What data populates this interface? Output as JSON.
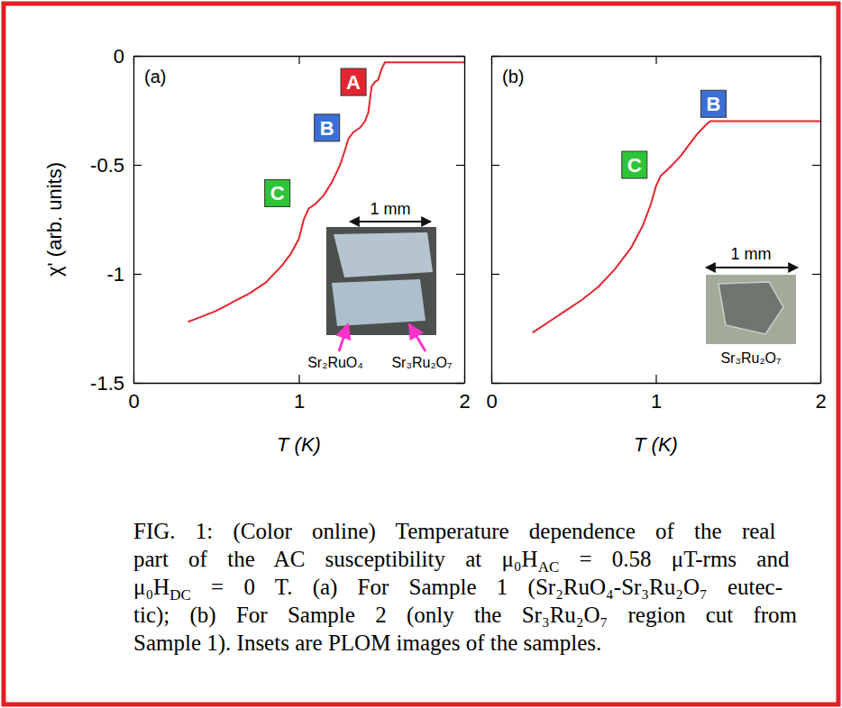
{
  "chart_data": [
    {
      "type": "line",
      "panel_label": "(a)",
      "x_label": "T (K)",
      "y_label": "χ' (arb. units)",
      "xlim": [
        0,
        2
      ],
      "ylim": [
        -1.5,
        0
      ],
      "xticks": [
        0,
        1,
        2
      ],
      "yticks": [
        0,
        -0.5,
        -1,
        -1.5
      ],
      "x": [
        0.33,
        0.4,
        0.5,
        0.6,
        0.7,
        0.8,
        0.9,
        0.95,
        1.0,
        1.03,
        1.06,
        1.1,
        1.15,
        1.2,
        1.25,
        1.28,
        1.3,
        1.33,
        1.37,
        1.4,
        1.42,
        1.43,
        1.44,
        1.46,
        1.48,
        1.5,
        1.52,
        1.55,
        1.7,
        2.0
      ],
      "series": [
        {
          "color": "#e3262e",
          "line_style": "solid",
          "values": [
            -1.22,
            -1.2,
            -1.17,
            -1.13,
            -1.09,
            -1.04,
            -0.96,
            -0.91,
            -0.84,
            -0.75,
            -0.7,
            -0.68,
            -0.64,
            -0.58,
            -0.5,
            -0.43,
            -0.38,
            -0.35,
            -0.33,
            -0.3,
            -0.26,
            -0.2,
            -0.14,
            -0.12,
            -0.11,
            -0.06,
            -0.03,
            -0.03,
            -0.03,
            -0.03
          ]
        }
      ],
      "annotations": [
        {
          "text": "A",
          "x": 1.33,
          "y": -0.12,
          "color": "#e3262e"
        },
        {
          "text": "B",
          "x": 1.17,
          "y": -0.33,
          "color": "#3b6fd6"
        },
        {
          "text": "C",
          "x": 0.87,
          "y": -0.63,
          "color": "#2ec43a"
        }
      ],
      "inset": {
        "scale_label": "1 mm",
        "labels": [
          "Sr₂RuO₄",
          "Sr₃Ru₂O₇"
        ]
      }
    },
    {
      "type": "line",
      "panel_label": "(b)",
      "x_label": "T (K)",
      "tick_labels": "x",
      "xlim": [
        0,
        2
      ],
      "ylim": [
        -1.5,
        0
      ],
      "xticks": [
        0,
        1,
        2
      ],
      "yticks": [
        0,
        -0.5,
        -1,
        -1.5
      ],
      "x": [
        0.25,
        0.35,
        0.45,
        0.55,
        0.65,
        0.75,
        0.85,
        0.92,
        0.97,
        1.0,
        1.03,
        1.06,
        1.1,
        1.15,
        1.2,
        1.25,
        1.3,
        1.33,
        1.36,
        1.5,
        1.7,
        2.0
      ],
      "series": [
        {
          "color": "#e3262e",
          "line_style": "solid",
          "values": [
            -1.27,
            -1.22,
            -1.17,
            -1.12,
            -1.06,
            -0.98,
            -0.88,
            -0.78,
            -0.68,
            -0.6,
            -0.55,
            -0.53,
            -0.5,
            -0.46,
            -0.41,
            -0.36,
            -0.32,
            -0.3,
            -0.3,
            -0.3,
            -0.3,
            -0.3
          ]
        }
      ],
      "annotations": [
        {
          "text": "B",
          "x": 1.35,
          "y": -0.22,
          "color": "#3b6fd6"
        },
        {
          "text": "C",
          "x": 0.87,
          "y": -0.5,
          "color": "#2ec43a"
        }
      ],
      "inset": {
        "scale_label": "1 mm",
        "labels": [
          "Sr₃Ru₂O₇"
        ]
      }
    }
  ],
  "caption": [
    "FIG. 1: (Color online) Temperature dependence of the real",
    [
      "part of the AC susceptibility at μ₀H",
      "AC",
      " = 0.58 μT-rms and"
    ],
    [
      "μ₀H",
      "DC",
      " = 0 T. (a) For Sample 1 (Sr₂RuO₄-Sr₃Ru₂O₇ eutec-"
    ],
    "tic); (b) For Sample 2 (only the Sr₃Ru₂O₇ region cut from",
    "Sample 1). Insets are PLOM images of the samples."
  ]
}
